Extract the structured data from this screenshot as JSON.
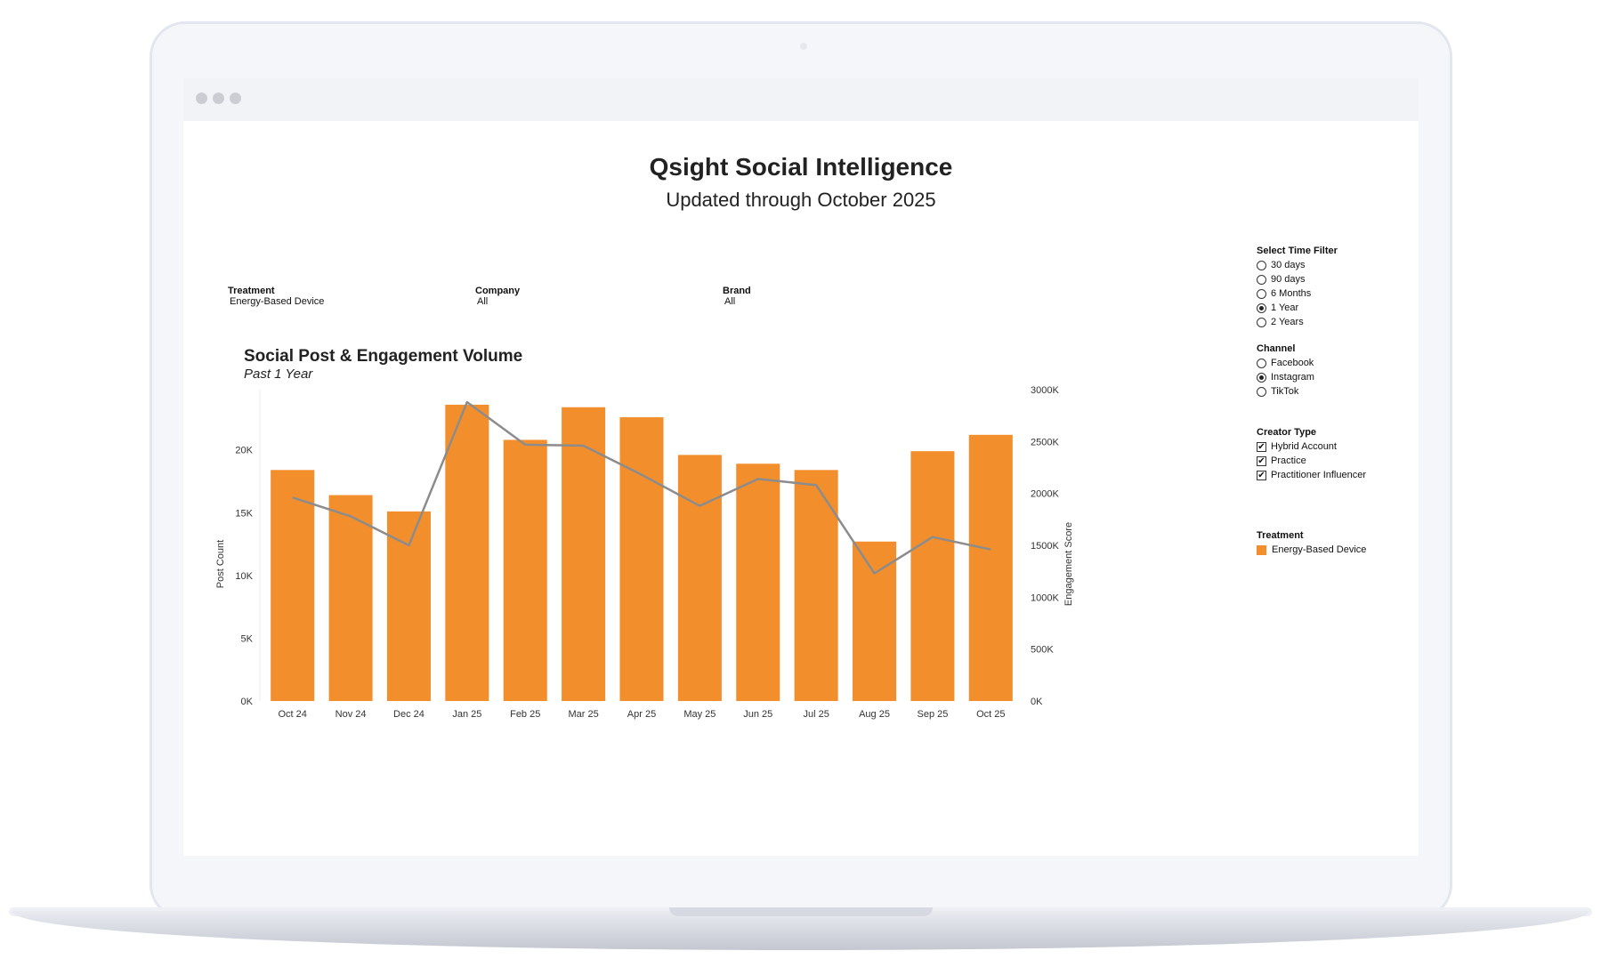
{
  "page": {
    "title": "Qsight Social Intelligence",
    "subtitle": "Updated through October 2025"
  },
  "filters": [
    {
      "label": "Treatment",
      "value": "Energy-Based Device"
    },
    {
      "label": "Company",
      "value": "All"
    },
    {
      "label": "Brand",
      "value": "All"
    }
  ],
  "sidebar": {
    "time_filter": {
      "header": "Select Time Filter",
      "options": [
        "30 days",
        "90 days",
        "6 Months",
        "1 Year",
        "2 Years"
      ],
      "selected": "1 Year"
    },
    "channel": {
      "header": "Channel",
      "options": [
        "Facebook",
        "Instagram",
        "TikTok"
      ],
      "selected": "Instagram"
    },
    "creator_type": {
      "header": "Creator Type",
      "options": [
        "Hybrid Account",
        "Practice",
        "Practitioner Influencer"
      ],
      "checked": [
        "Hybrid Account",
        "Practice",
        "Practitioner Influencer"
      ]
    },
    "legend": {
      "header": "Treatment",
      "items": [
        {
          "label": "Energy-Based Device",
          "color": "#F28E2C"
        }
      ]
    }
  },
  "chart_data": {
    "type": "bar",
    "title": "Social Post & Engagement Volume",
    "subtitle": "Past 1 Year",
    "categories": [
      "Oct 24",
      "Nov 24",
      "Dec 24",
      "Jan 25",
      "Feb 25",
      "Mar 25",
      "Apr 25",
      "May 25",
      "Jun 25",
      "Jul 25",
      "Aug 25",
      "Sep 25",
      "Oct 25"
    ],
    "series": [
      {
        "name": "Post Count",
        "type": "bar",
        "axis": "left",
        "color": "#F28E2C",
        "values": [
          18400,
          16400,
          15100,
          23600,
          20800,
          23400,
          22600,
          19600,
          18900,
          18400,
          12700,
          19900,
          21200
        ]
      },
      {
        "name": "Engagement Score",
        "type": "line",
        "axis": "right",
        "color": "#8c8c8c",
        "values": [
          1960000,
          1780000,
          1500000,
          2880000,
          2470000,
          2460000,
          2180000,
          1880000,
          2140000,
          2080000,
          1230000,
          1580000,
          1460000
        ]
      }
    ],
    "ylabel": "Post Count",
    "ylabel_right": "Engagement Score",
    "ylim": [
      0,
      24800
    ],
    "ylim_right": [
      0,
      3000000
    ],
    "yticks": [
      0,
      5000,
      10000,
      15000,
      20000
    ],
    "yticks_labels": [
      "0K",
      "5K",
      "10K",
      "15K",
      "20K"
    ],
    "yticks_right": [
      0,
      500000,
      1000000,
      1500000,
      2000000,
      2500000,
      3000000
    ],
    "yticks_right_labels": [
      "0K",
      "500K",
      "1000K",
      "1500K",
      "2000K",
      "2500K",
      "3000K"
    ],
    "grid": false,
    "legend": "right"
  }
}
